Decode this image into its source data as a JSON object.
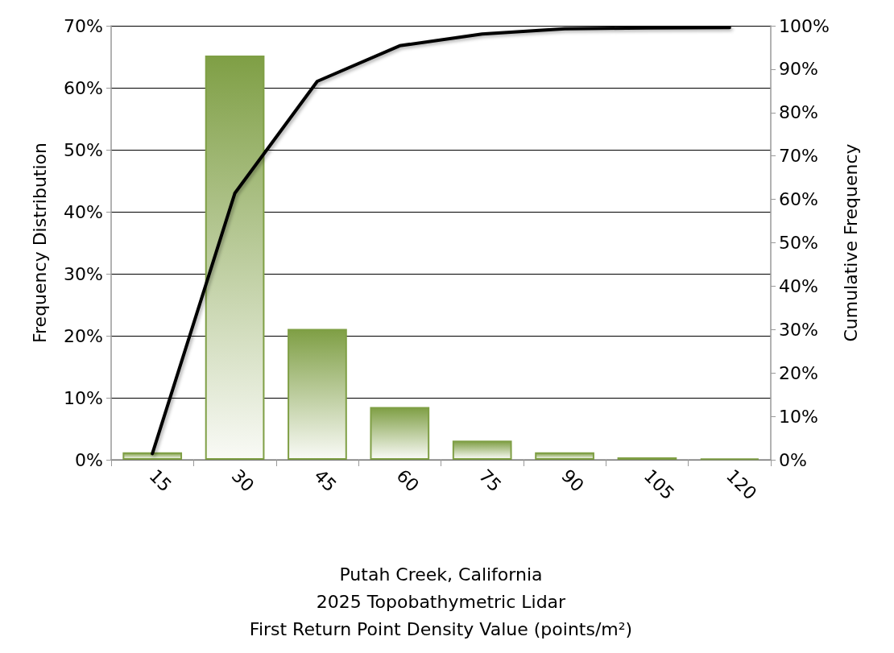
{
  "chart_data": {
    "type": "bar",
    "xlabel": "Putah Creek, California\n2025 Topobathymetric Lidar\nFirst Return Point Density Value (points/m²)",
    "ylabel": "Frequency Distribution",
    "y2label": "Cumulative Frequency",
    "categories": [
      "15",
      "30",
      "45",
      "60",
      "75",
      "90",
      "105",
      "120"
    ],
    "series": [
      {
        "color": "#7f9f45",
        "values": [
          1.2,
          65.2,
          21.1,
          8.5,
          3.1,
          1.2,
          0.4,
          0.2
        ]
      },
      {
        "type": "line",
        "axis": "y2",
        "color": "#000000",
        "values": [
          1.4,
          61.4,
          87.2,
          95.4,
          98.1,
          99.3,
          99.5,
          99.6
        ]
      }
    ],
    "ylim": [
      0,
      70
    ],
    "yticks": [
      {
        "value": 0,
        "label": "0%"
      },
      {
        "value": 10,
        "label": "10%"
      },
      {
        "value": 20,
        "label": "20%"
      },
      {
        "value": 30,
        "label": "30%"
      },
      {
        "value": 40,
        "label": "40%"
      },
      {
        "value": 50,
        "label": "50%"
      },
      {
        "value": 60,
        "label": "60%"
      },
      {
        "value": 70,
        "label": "70%"
      }
    ],
    "y2lim": [
      0,
      100
    ],
    "y2ticks": [
      {
        "value": 0,
        "label": "0%"
      },
      {
        "value": 10,
        "label": "10%"
      },
      {
        "value": 20,
        "label": "20%"
      },
      {
        "value": 30,
        "label": "30%"
      },
      {
        "value": 40,
        "label": "40%"
      },
      {
        "value": 50,
        "label": "50%"
      },
      {
        "value": 60,
        "label": "60%"
      },
      {
        "value": 70,
        "label": "70%"
      },
      {
        "value": 80,
        "label": "80%"
      },
      {
        "value": 90,
        "label": "90%"
      },
      {
        "value": 100,
        "label": "100%"
      }
    ],
    "grid": "y",
    "marker": "none",
    "line_style": "solid"
  }
}
